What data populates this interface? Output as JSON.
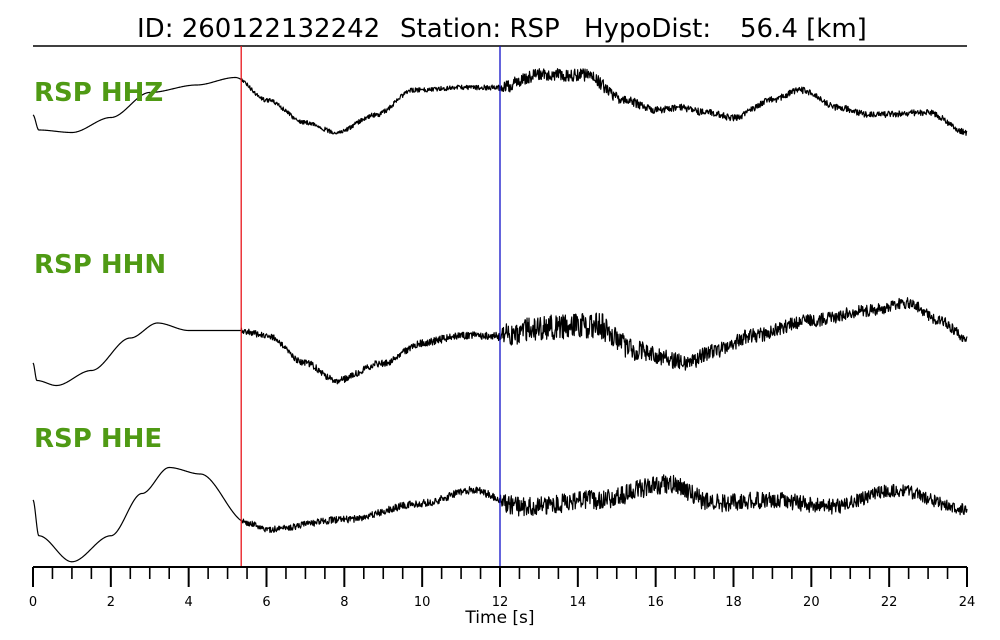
{
  "header": {
    "id_label": "ID: 260122132242",
    "station_label": "Station: RSP",
    "hypodist_label": "HypoDist:",
    "hypodist_value": "56.4 [km]"
  },
  "chart_data": {
    "type": "line",
    "xlabel": "Time [s]",
    "xlim": [
      0,
      24
    ],
    "x_ticks": [
      0,
      2,
      4,
      6,
      8,
      10,
      12,
      14,
      16,
      18,
      20,
      22,
      24
    ],
    "x_tick_labels": [
      "0",
      "2",
      "4",
      "6",
      "8",
      "10",
      "12",
      "14",
      "16",
      "18",
      "20",
      "22",
      "24"
    ],
    "minor_tick_step": 0.5,
    "grid": false,
    "p_pick_time": 5.35,
    "s_pick_time": 12.0,
    "p_pick_color": "#e8151b",
    "s_pick_color": "#1010c8",
    "trace_color": "#000000",
    "label_color": "#4f9a14",
    "series": [
      {
        "name": "RSP HHZ",
        "noise_start": 5.35,
        "amplitudes": [
          [
            0,
            0.0
          ],
          [
            0.15,
            0.3
          ],
          [
            1.0,
            0.35
          ],
          [
            2.0,
            0.05
          ],
          [
            3.0,
            -0.45
          ],
          [
            4.2,
            -0.6
          ],
          [
            5.2,
            -0.75
          ],
          [
            6.0,
            -0.3
          ],
          [
            7.0,
            0.15
          ],
          [
            7.8,
            0.35
          ],
          [
            8.8,
            0.0
          ],
          [
            9.8,
            -0.5
          ],
          [
            11.0,
            -0.55
          ],
          [
            12.0,
            -0.55
          ],
          [
            13.0,
            -0.8
          ],
          [
            14.2,
            -0.8
          ],
          [
            15.2,
            -0.3
          ],
          [
            16.0,
            -0.1
          ],
          [
            16.6,
            -0.15
          ],
          [
            17.3,
            -0.05
          ],
          [
            18.0,
            0.05
          ],
          [
            19.0,
            -0.3
          ],
          [
            19.7,
            -0.5
          ],
          [
            20.7,
            -0.15
          ],
          [
            21.5,
            0.0
          ],
          [
            23.0,
            -0.05
          ],
          [
            24.0,
            0.35
          ]
        ],
        "noise_amp": [
          [
            5.35,
            0.04
          ],
          [
            11.9,
            0.05
          ],
          [
            12.2,
            0.13
          ],
          [
            14.8,
            0.12
          ],
          [
            16.0,
            0.07
          ],
          [
            24.0,
            0.06
          ]
        ]
      },
      {
        "name": "RSP HHN",
        "noise_start": 5.35,
        "amplitudes": [
          [
            0,
            0.6
          ],
          [
            0.1,
            0.95
          ],
          [
            0.6,
            1.05
          ],
          [
            1.5,
            0.75
          ],
          [
            2.5,
            0.1
          ],
          [
            3.2,
            -0.2
          ],
          [
            4.0,
            -0.05
          ],
          [
            5.3,
            -0.05
          ],
          [
            6.0,
            0.05
          ],
          [
            7.0,
            0.6
          ],
          [
            7.8,
            0.95
          ],
          [
            9.0,
            0.6
          ],
          [
            10.0,
            0.2
          ],
          [
            11.0,
            0.05
          ],
          [
            12.0,
            0.05
          ],
          [
            13.0,
            -0.1
          ],
          [
            14.5,
            -0.15
          ],
          [
            15.5,
            0.35
          ],
          [
            16.8,
            0.6
          ],
          [
            17.5,
            0.35
          ],
          [
            18.5,
            0.05
          ],
          [
            20.0,
            -0.25
          ],
          [
            21.5,
            -0.45
          ],
          [
            22.5,
            -0.6
          ],
          [
            23.3,
            -0.25
          ],
          [
            24.0,
            0.1
          ]
        ],
        "noise_amp": [
          [
            5.35,
            0.06
          ],
          [
            11.9,
            0.08
          ],
          [
            12.2,
            0.25
          ],
          [
            14.8,
            0.27
          ],
          [
            16.0,
            0.18
          ],
          [
            18.0,
            0.15
          ],
          [
            24.0,
            0.1
          ]
        ]
      },
      {
        "name": "RSP HHE",
        "noise_start": 5.35,
        "amplitudes": [
          [
            0,
            0.0
          ],
          [
            0.15,
            0.55
          ],
          [
            1.0,
            0.95
          ],
          [
            2.0,
            0.55
          ],
          [
            2.8,
            -0.1
          ],
          [
            3.5,
            -0.5
          ],
          [
            4.3,
            -0.4
          ],
          [
            5.5,
            0.35
          ],
          [
            6.0,
            0.45
          ],
          [
            8.0,
            0.3
          ],
          [
            10.0,
            0.05
          ],
          [
            11.3,
            -0.15
          ],
          [
            12.5,
            0.1
          ],
          [
            14.5,
            0.0
          ],
          [
            16.3,
            -0.25
          ],
          [
            17.5,
            0.05
          ],
          [
            19.0,
            0.0
          ],
          [
            20.5,
            0.1
          ],
          [
            22.2,
            -0.15
          ],
          [
            24.0,
            0.15
          ]
        ],
        "noise_amp": [
          [
            5.35,
            0.05
          ],
          [
            11.9,
            0.06
          ],
          [
            12.2,
            0.15
          ],
          [
            16.5,
            0.15
          ],
          [
            24.0,
            0.09
          ]
        ]
      }
    ]
  }
}
